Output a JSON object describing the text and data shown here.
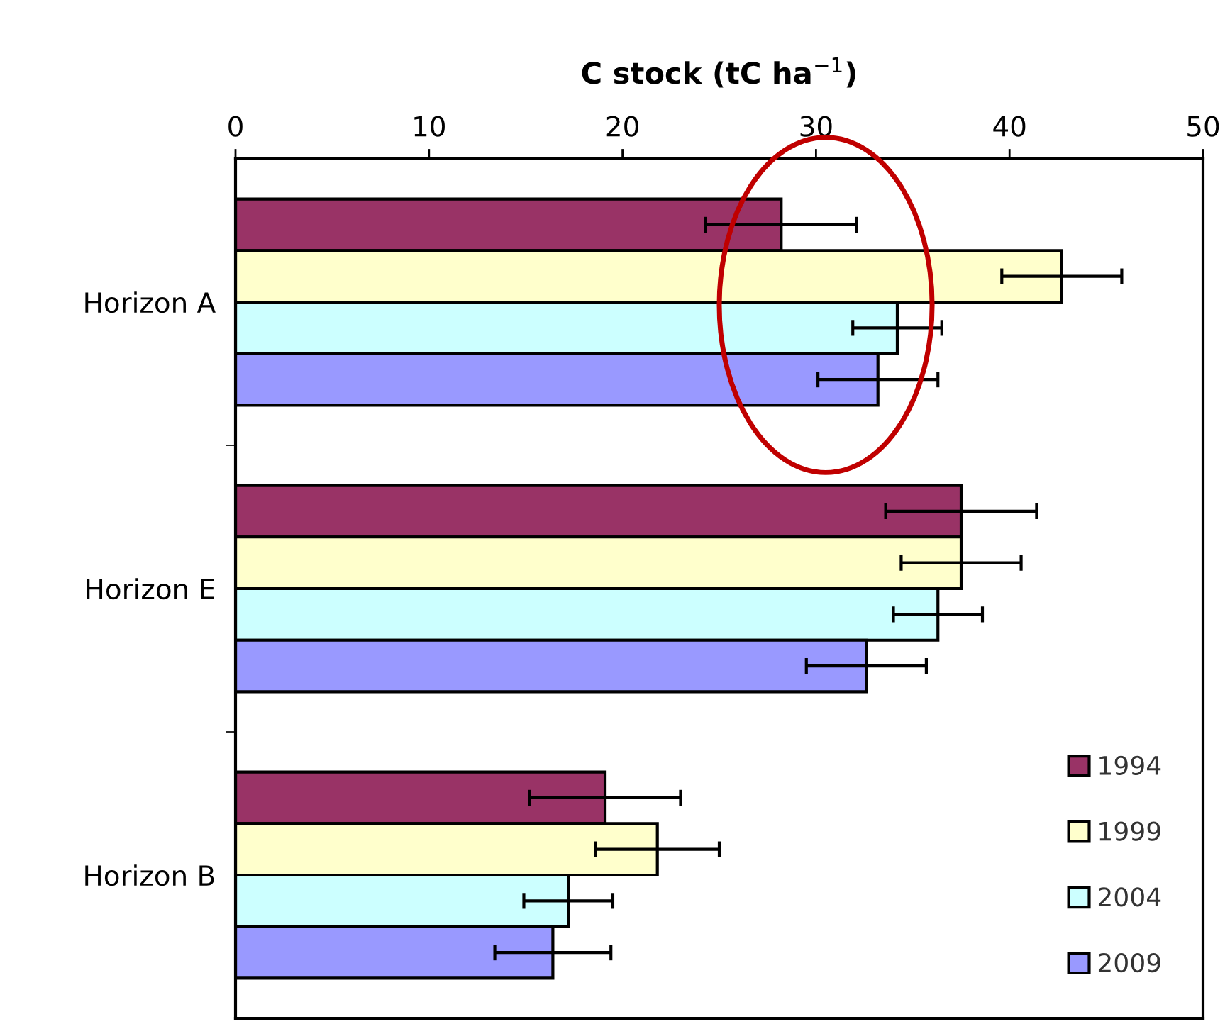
{
  "chart_data": {
    "type": "bar",
    "orientation": "horizontal",
    "xlabel": "C stock (tC ha$^{−1}$)",
    "categories": [
      "Horizon A",
      "Horizon E",
      "Horizon B"
    ],
    "series": [
      {
        "name": "1994",
        "color": "#993366",
        "values": [
          28.2,
          37.5,
          19.1
        ],
        "errors": [
          3.9,
          3.9,
          3.9
        ]
      },
      {
        "name": "1999",
        "color": "#ffffcc",
        "values": [
          42.7,
          37.5,
          21.8
        ],
        "errors": [
          3.1,
          3.1,
          3.2
        ]
      },
      {
        "name": "2004",
        "color": "#ccffff",
        "values": [
          34.2,
          36.3,
          17.2
        ],
        "errors": [
          2.3,
          2.3,
          2.3
        ]
      },
      {
        "name": "2009",
        "color": "#9999ff",
        "values": [
          33.2,
          32.6,
          16.4
        ],
        "errors": [
          3.1,
          3.1,
          3.0
        ]
      }
    ],
    "xlim": [
      0,
      50
    ],
    "xticks": [
      0,
      10,
      20,
      30,
      40,
      50
    ],
    "grid": false,
    "legend": "bottom right"
  }
}
